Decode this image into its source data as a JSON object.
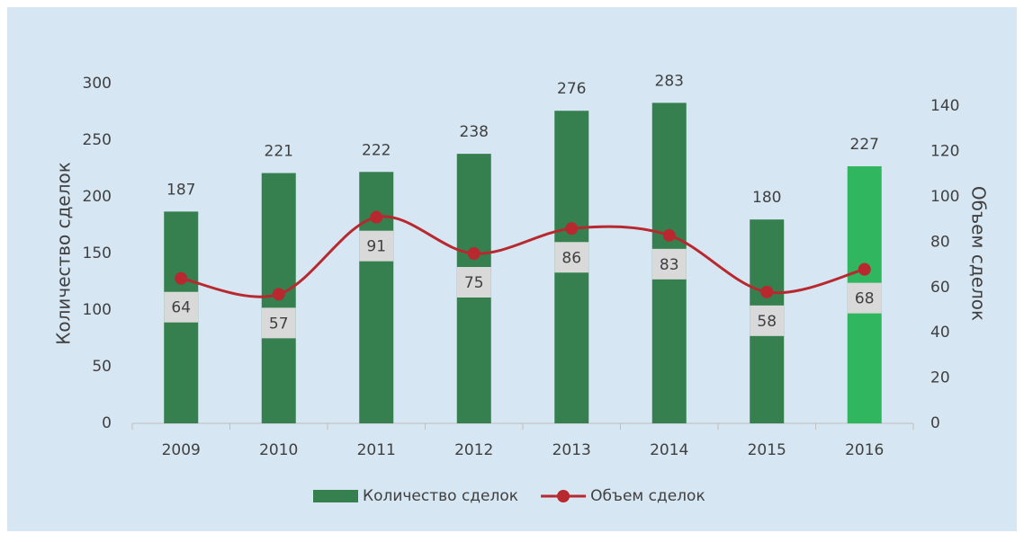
{
  "chart_data": {
    "type": "bar",
    "categories": [
      "2009",
      "2010",
      "2011",
      "2012",
      "2013",
      "2014",
      "2015",
      "2016"
    ],
    "series": [
      {
        "name": "Количество сделок",
        "type": "bar",
        "color": "#36804f",
        "colors": [
          "#36804f",
          "#36804f",
          "#36804f",
          "#36804f",
          "#36804f",
          "#36804f",
          "#36804f",
          "#2fb65e"
        ],
        "values": [
          187,
          221,
          222,
          238,
          276,
          283,
          180,
          227
        ]
      },
      {
        "name": "Объем сделок",
        "type": "line",
        "axis": "y2",
        "color": "#b8282f",
        "values": [
          64,
          57,
          91,
          75,
          86,
          83,
          58,
          68
        ]
      }
    ],
    "y_label": "Количество сделок",
    "y2_label": "Объем сделок",
    "ylim": [
      0,
      300
    ],
    "yticks": [
      0,
      50,
      100,
      150,
      200,
      250,
      300
    ],
    "y2lim": [
      0,
      150
    ],
    "y2ticks": [
      0,
      20,
      40,
      60,
      80,
      100,
      120,
      140
    ],
    "legend": "bottom"
  }
}
